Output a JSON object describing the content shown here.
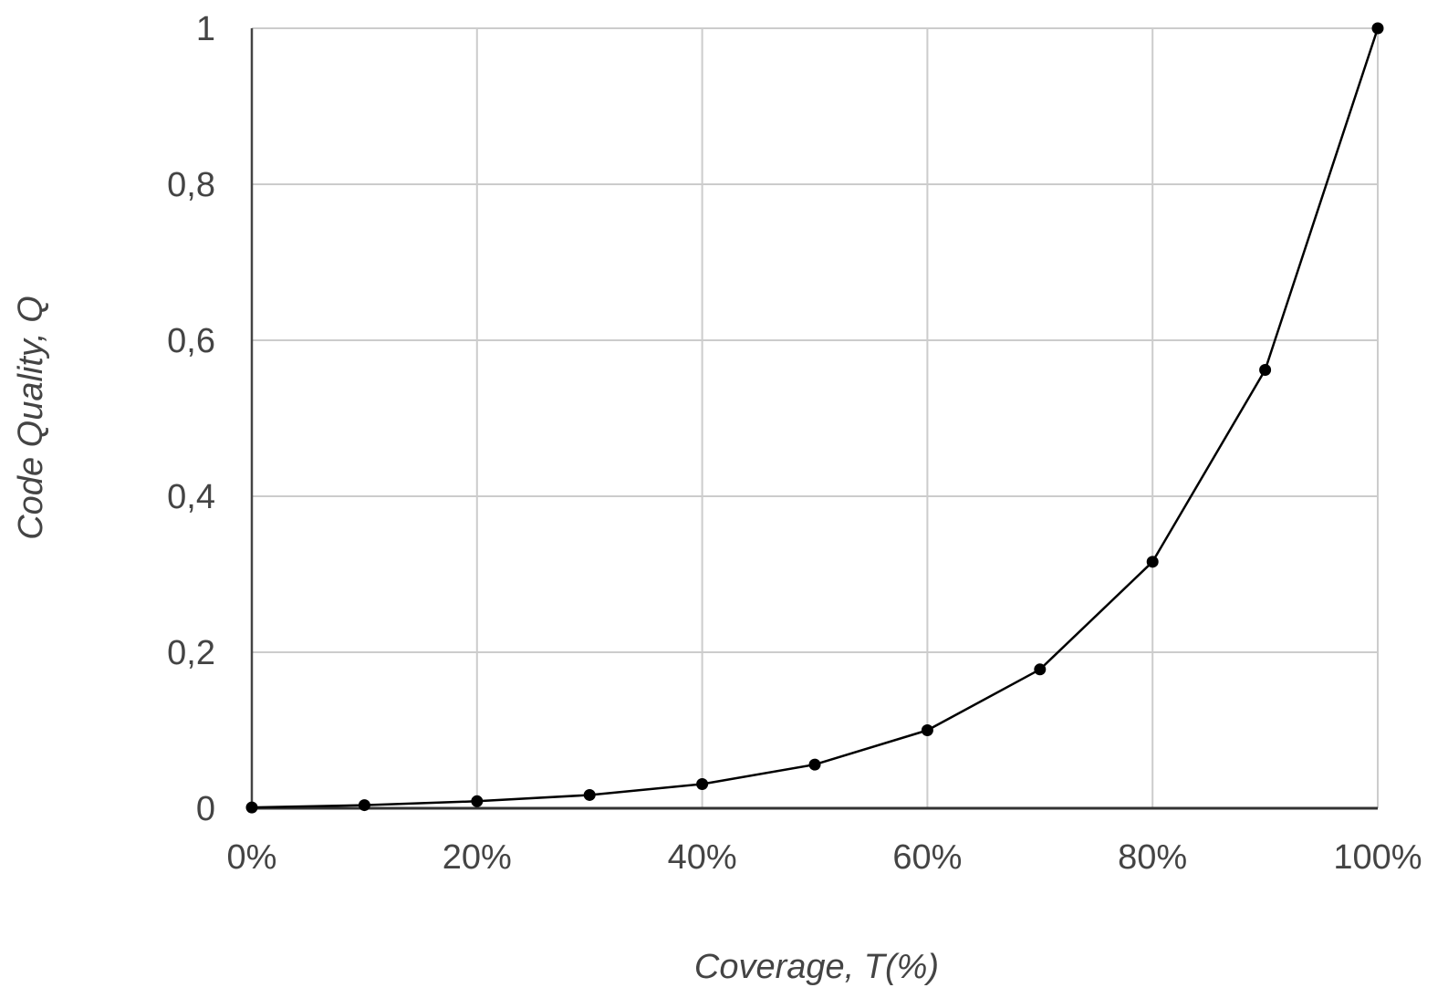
{
  "chart_data": {
    "type": "line",
    "title": "",
    "xlabel": "Coverage, T(%)",
    "ylabel": "Code Quality, Q",
    "x": [
      0,
      10,
      20,
      30,
      40,
      50,
      60,
      70,
      80,
      90,
      100
    ],
    "series": [
      {
        "values": [
          0.001,
          0.004,
          0.009,
          0.017,
          0.031,
          0.056,
          0.1,
          0.178,
          0.316,
          0.562,
          1.0
        ]
      }
    ],
    "xlim": [
      0,
      100
    ],
    "ylim": [
      0,
      1
    ],
    "x_ticks": [
      0,
      20,
      40,
      60,
      80,
      100
    ],
    "x_tick_labels": [
      "0%",
      "20%",
      "40%",
      "60%",
      "80%",
      "100%"
    ],
    "y_ticks": [
      0,
      0.2,
      0.4,
      0.6,
      0.8,
      1
    ],
    "y_tick_labels": [
      "0",
      "0,2",
      "0,4",
      "0,6",
      "0,8",
      "1"
    ],
    "grid": true,
    "legend": "none",
    "colors": {
      "line": "#000000",
      "grid": "#cccccc",
      "text": "#444444"
    }
  }
}
